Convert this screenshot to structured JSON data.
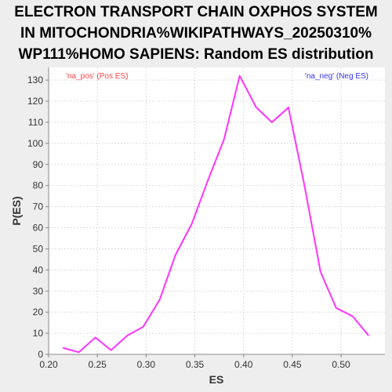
{
  "chart_data": {
    "type": "line",
    "title_lines": [
      "ELECTRON TRANSPORT CHAIN OXPHOS SYSTEM",
      "IN MITOCHONDRIA%WIKIPATHWAYS_20250310%",
      "WP111%HOMO SAPIENS: Random ES distribution"
    ],
    "xlabel": "ES",
    "ylabel": "P(ES)",
    "xlim": [
      0.2,
      0.545
    ],
    "ylim": [
      0,
      136
    ],
    "xticks": [
      "0.20",
      "0.25",
      "0.30",
      "0.35",
      "0.40",
      "0.45",
      "0.50"
    ],
    "yticks": [
      "0",
      "10",
      "20",
      "30",
      "40",
      "50",
      "60",
      "70",
      "80",
      "90",
      "100",
      "110",
      "120",
      "130"
    ],
    "grid": true,
    "legend": [
      {
        "text": "'na_pos' (Pos ES)",
        "color": "#ff4444",
        "placement": "top-left"
      },
      {
        "text": "'na_neg' (Neg ES)",
        "color": "#3333ff",
        "placement": "top-right"
      }
    ],
    "line_color": "#ff33ff",
    "series": [
      {
        "x": [
          0.215,
          0.231,
          0.248,
          0.264,
          0.281,
          0.297,
          0.314,
          0.33,
          0.347,
          0.363,
          0.38,
          0.396,
          0.413,
          0.429,
          0.446,
          0.462,
          0.479,
          0.495,
          0.512,
          0.528
        ],
        "values": [
          3,
          1,
          8,
          2,
          9,
          13,
          26,
          47,
          62,
          82,
          102,
          132,
          117,
          110,
          117,
          81,
          39,
          22,
          18,
          9
        ]
      }
    ]
  }
}
